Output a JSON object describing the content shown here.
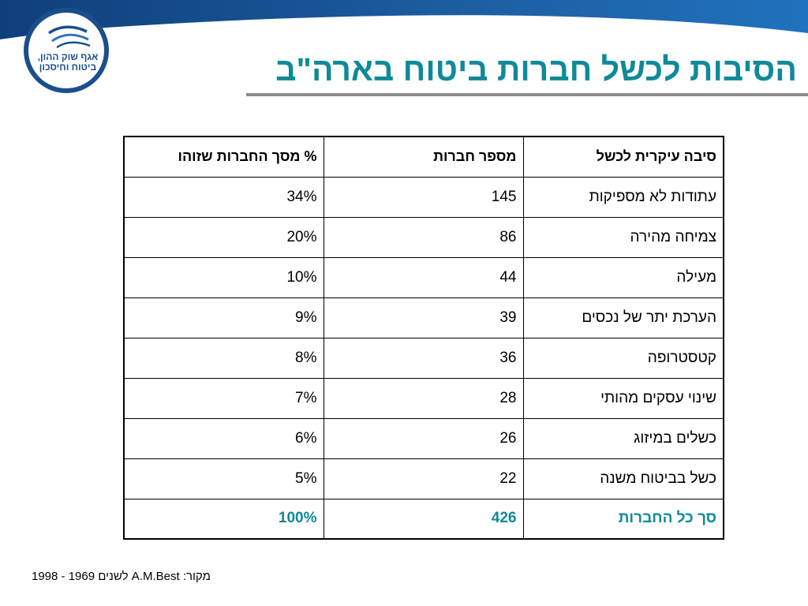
{
  "logo": {
    "text_line1": "אגף שוק ההון,",
    "text_line2": "ביטוח וחיסכון"
  },
  "title": "הסיבות לכשל חברות ביטוח בארה\"ב",
  "table": {
    "headers": [
      "סיבה עיקרית לכשל",
      "מספר חברות",
      "% מסך החברות שזוהו"
    ],
    "rows": [
      [
        "עתודות לא מספיקות",
        "145",
        "34%"
      ],
      [
        "צמיחה מהירה",
        "86",
        "20%"
      ],
      [
        "מעילה",
        "44",
        "10%"
      ],
      [
        "הערכת יתר של נכסים",
        "39",
        "9%"
      ],
      [
        "קטסטרופה",
        "36",
        "8%"
      ],
      [
        "שינוי עסקים מהותי",
        "28",
        "7%"
      ],
      [
        "כשלים במיזוג",
        "26",
        "6%"
      ],
      [
        "כשל בביטוח משנה",
        "22",
        "5%"
      ]
    ],
    "total": [
      "סך כל החברות",
      "426",
      "100%"
    ]
  },
  "source": "מקור: A.M.Best לשנים 1969 - 1998",
  "colors": {
    "accent": "#0f8a98",
    "banner": "#1b4f8c",
    "rule": "#8c8c8c"
  }
}
